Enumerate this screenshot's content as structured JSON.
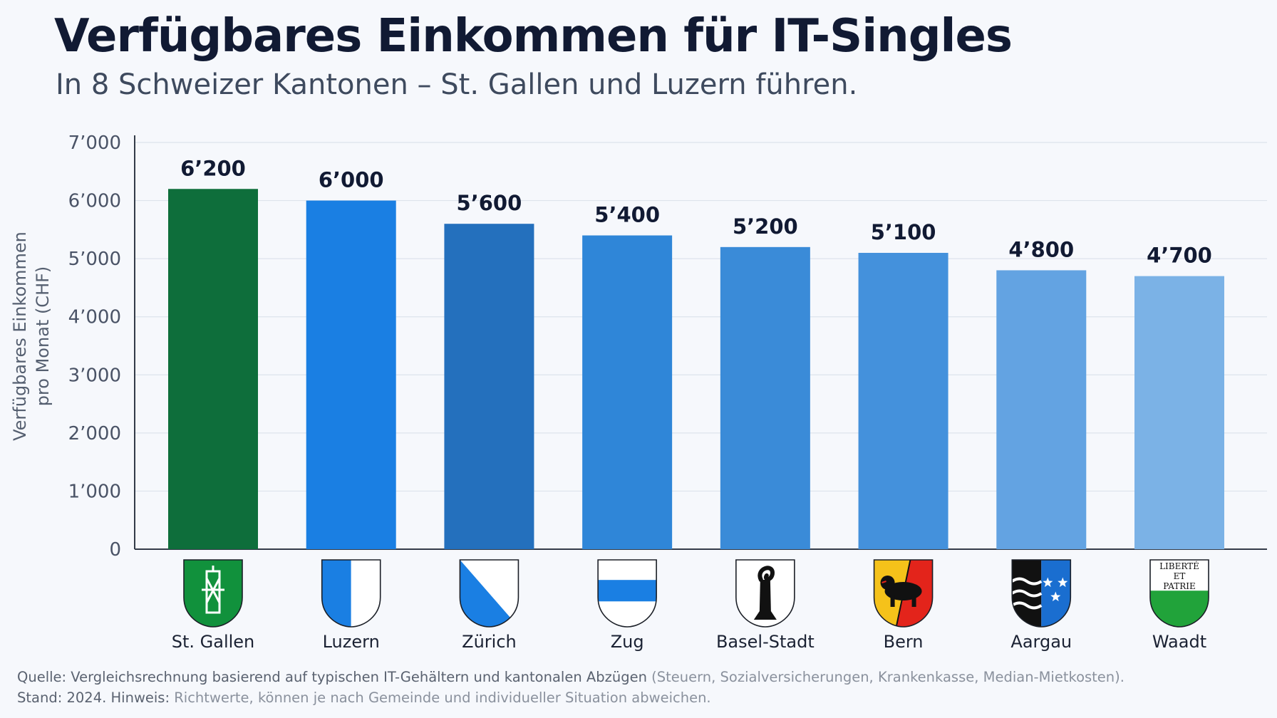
{
  "title": "Verfügbares Einkommen für IT-Singles",
  "subtitle": "In 8 Schweizer Kantonen – St. Gallen und Luzern führen.",
  "chart_data": {
    "type": "bar",
    "ylabel_line1": "Verfügbares Einkommen",
    "ylabel_line2": "pro Monat (CHF)",
    "ylim": [
      0,
      7000
    ],
    "yticks": [
      0,
      1000,
      2000,
      3000,
      4000,
      5000,
      6000,
      7000
    ],
    "ytick_labels": [
      "0",
      "1’000",
      "2’000",
      "3’000",
      "4’000",
      "5’000",
      "6’000",
      "7’000"
    ],
    "grid": "horizontal",
    "categories": [
      "St. Gallen",
      "Luzern",
      "Zürich",
      "Zug",
      "Basel-Stadt",
      "Bern",
      "Aargau",
      "Waadt"
    ],
    "values": [
      6200,
      6000,
      5600,
      5400,
      5200,
      5100,
      4800,
      4700
    ],
    "value_labels": [
      "6’200",
      "6’000",
      "5’600",
      "5’400",
      "5’200",
      "5’100",
      "4’800",
      "4’700"
    ],
    "bar_colors": [
      "#0e6e3b",
      "#1a7fe3",
      "#2470bd",
      "#2f86d8",
      "#3a8bd8",
      "#4491dc",
      "#63a3e2",
      "#7bb2e6"
    ],
    "crest_icons": [
      "st-gallen-crest-icon",
      "luzern-crest-icon",
      "zuerich-crest-icon",
      "zug-crest-icon",
      "basel-stadt-crest-icon",
      "bern-crest-icon",
      "aargau-crest-icon",
      "waadt-crest-icon"
    ],
    "waadt_crest_text": [
      "LIBERTÉ",
      "ET",
      "PATRIE"
    ]
  },
  "footer": {
    "line1_dark": "Quelle: Vergleichsrechnung basierend auf typischen IT-Gehältern und kantonalen Abzügen",
    "line1_light": " (Steuern, Sozialversicherungen, Krankenkasse, Median-Mietkosten).",
    "line2_dark": "Stand: 2024. Hinweis:",
    "line2_light": " Richtwerte, können je nach Gemeinde und individueller Situation abweichen."
  }
}
